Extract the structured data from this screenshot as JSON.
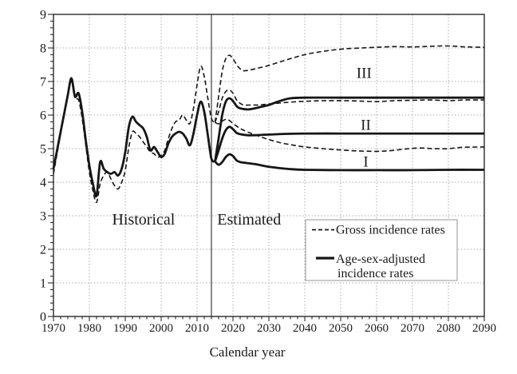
{
  "chart_data": {
    "type": "line",
    "title": "",
    "xlabel": "Calendar year",
    "ylabel": "",
    "xlim": [
      1970,
      2090
    ],
    "ylim": [
      0,
      9
    ],
    "x_tick_step": 10,
    "x_minor_step": 2,
    "y_tick_step": 1,
    "y_minor_step": 0.2,
    "grid": true,
    "legend_position": "inside lower right",
    "divider_x": 2014,
    "x_tick_labels": [
      "1970",
      "1980",
      "1990",
      "2000",
      "2010",
      "2020",
      "2030",
      "2040",
      "2050",
      "2060",
      "2070",
      "2080",
      "2090"
    ],
    "y_tick_labels": [
      "0",
      "1",
      "2",
      "3",
      "4",
      "5",
      "6",
      "7",
      "8",
      "9"
    ],
    "region_labels": [
      {
        "text": "Historical",
        "x": 1995.1,
        "y": 2.9
      },
      {
        "text": "Estimated",
        "x": 2024.5,
        "y": 2.9
      }
    ],
    "scenario_labels": [
      {
        "text": "III",
        "x": 2056.5,
        "y": 7.26
      },
      {
        "text": "II",
        "x": 2057.0,
        "y": 5.71
      },
      {
        "text": "I",
        "x": 2057.0,
        "y": 4.62
      }
    ],
    "legend": {
      "entries": [
        {
          "label": "Gross incidence rates",
          "style": "dashed"
        },
        {
          "label": "Age-sex-adjusted\nincidence rates",
          "style": "solid"
        }
      ]
    },
    "series": [
      {
        "name": "gross-historical",
        "group": "Gross incidence rates",
        "scenario": "historical",
        "style": "dashed",
        "points": [
          [
            1970,
            4.25
          ],
          [
            1971,
            4.85
          ],
          [
            1972,
            5.45
          ],
          [
            1973,
            6.05
          ],
          [
            1974,
            6.65
          ],
          [
            1975,
            7.0
          ],
          [
            1976,
            6.5
          ],
          [
            1977,
            6.45
          ],
          [
            1978,
            5.9
          ],
          [
            1979,
            5.1
          ],
          [
            1980,
            4.3
          ],
          [
            1981,
            3.75
          ],
          [
            1982,
            3.4
          ],
          [
            1983,
            3.95
          ],
          [
            1984,
            4.2
          ],
          [
            1985,
            4.3
          ],
          [
            1986,
            4.1
          ],
          [
            1987,
            3.9
          ],
          [
            1988,
            3.8
          ],
          [
            1989,
            4.0
          ],
          [
            1990,
            4.35
          ],
          [
            1991,
            5.05
          ],
          [
            1992,
            5.5
          ],
          [
            1993,
            5.45
          ],
          [
            1994,
            5.35
          ],
          [
            1995,
            5.2
          ],
          [
            1996,
            5.05
          ],
          [
            1997,
            4.9
          ],
          [
            1998,
            4.85
          ],
          [
            1999,
            4.75
          ],
          [
            2000,
            4.8
          ],
          [
            2001,
            4.95
          ],
          [
            2002,
            5.3
          ],
          [
            2003,
            5.6
          ],
          [
            2004,
            5.8
          ],
          [
            2005,
            5.85
          ],
          [
            2006,
            6.0
          ],
          [
            2007,
            5.85
          ],
          [
            2008,
            5.75
          ],
          [
            2009,
            6.2
          ],
          [
            2010,
            6.9
          ],
          [
            2011,
            7.45
          ],
          [
            2012,
            7.15
          ],
          [
            2013,
            6.5
          ],
          [
            2014,
            5.9
          ],
          [
            2015,
            5.78
          ]
        ]
      },
      {
        "name": "adjusted-historical",
        "group": "Age-sex-adjusted incidence rates",
        "scenario": "historical",
        "style": "solid",
        "points": [
          [
            1970,
            4.4
          ],
          [
            1971,
            4.95
          ],
          [
            1972,
            5.5
          ],
          [
            1973,
            6.05
          ],
          [
            1974,
            6.6
          ],
          [
            1975,
            7.1
          ],
          [
            1976,
            6.55
          ],
          [
            1977,
            6.65
          ],
          [
            1978,
            6.1
          ],
          [
            1979,
            5.25
          ],
          [
            1980,
            4.5
          ],
          [
            1981,
            3.95
          ],
          [
            1982,
            3.6
          ],
          [
            1983,
            4.6
          ],
          [
            1984,
            4.4
          ],
          [
            1985,
            4.3
          ],
          [
            1986,
            4.25
          ],
          [
            1987,
            4.3
          ],
          [
            1988,
            4.2
          ],
          [
            1989,
            4.4
          ],
          [
            1990,
            4.9
          ],
          [
            1991,
            5.65
          ],
          [
            1992,
            5.95
          ],
          [
            1993,
            5.8
          ],
          [
            1994,
            5.7
          ],
          [
            1995,
            5.6
          ],
          [
            1996,
            5.35
          ],
          [
            1997,
            4.95
          ],
          [
            1998,
            5.05
          ],
          [
            1999,
            4.9
          ],
          [
            2000,
            4.75
          ],
          [
            2001,
            4.85
          ],
          [
            2002,
            5.15
          ],
          [
            2003,
            5.35
          ],
          [
            2004,
            5.45
          ],
          [
            2005,
            5.5
          ],
          [
            2006,
            5.45
          ],
          [
            2007,
            5.3
          ],
          [
            2008,
            5.1
          ],
          [
            2009,
            5.45
          ],
          [
            2010,
            6.0
          ],
          [
            2011,
            6.4
          ],
          [
            2012,
            6.1
          ],
          [
            2013,
            5.4
          ],
          [
            2014,
            4.7
          ],
          [
            2015,
            4.62
          ]
        ]
      },
      {
        "name": "gross-III",
        "group": "Gross incidence rates",
        "scenario": "III",
        "style": "dashed",
        "points": [
          [
            2015,
            5.78
          ],
          [
            2016,
            6.55
          ],
          [
            2017,
            7.3
          ],
          [
            2018,
            7.68
          ],
          [
            2019,
            7.78
          ],
          [
            2020,
            7.68
          ],
          [
            2021,
            7.5
          ],
          [
            2022,
            7.38
          ],
          [
            2023,
            7.32
          ],
          [
            2025,
            7.35
          ],
          [
            2027,
            7.4
          ],
          [
            2030,
            7.48
          ],
          [
            2033,
            7.58
          ],
          [
            2036,
            7.68
          ],
          [
            2040,
            7.8
          ],
          [
            2044,
            7.88
          ],
          [
            2048,
            7.94
          ],
          [
            2052,
            7.98
          ],
          [
            2056,
            8.0
          ],
          [
            2060,
            8.02
          ],
          [
            2065,
            8.04
          ],
          [
            2070,
            8.03
          ],
          [
            2075,
            8.05
          ],
          [
            2080,
            8.06
          ],
          [
            2085,
            8.03
          ],
          [
            2090,
            8.02
          ]
        ]
      },
      {
        "name": "gross-II",
        "group": "Gross incidence rates",
        "scenario": "II",
        "style": "dashed",
        "points": [
          [
            2015,
            5.78
          ],
          [
            2016,
            6.1
          ],
          [
            2017,
            6.5
          ],
          [
            2018,
            6.7
          ],
          [
            2019,
            6.75
          ],
          [
            2020,
            6.65
          ],
          [
            2021,
            6.45
          ],
          [
            2022,
            6.35
          ],
          [
            2023,
            6.3
          ],
          [
            2025,
            6.3
          ],
          [
            2027,
            6.3
          ],
          [
            2030,
            6.33
          ],
          [
            2034,
            6.37
          ],
          [
            2038,
            6.4
          ],
          [
            2042,
            6.42
          ],
          [
            2046,
            6.43
          ],
          [
            2050,
            6.43
          ],
          [
            2055,
            6.42
          ],
          [
            2060,
            6.4
          ],
          [
            2065,
            6.43
          ],
          [
            2070,
            6.44
          ],
          [
            2075,
            6.45
          ],
          [
            2080,
            6.43
          ],
          [
            2085,
            6.45
          ],
          [
            2090,
            6.45
          ]
        ]
      },
      {
        "name": "gross-I",
        "group": "Gross incidence rates",
        "scenario": "I",
        "style": "dashed",
        "points": [
          [
            2015,
            5.78
          ],
          [
            2016,
            5.74
          ],
          [
            2017,
            5.82
          ],
          [
            2018,
            5.87
          ],
          [
            2019,
            5.84
          ],
          [
            2020,
            5.75
          ],
          [
            2022,
            5.6
          ],
          [
            2024,
            5.5
          ],
          [
            2026,
            5.42
          ],
          [
            2028,
            5.34
          ],
          [
            2030,
            5.27
          ],
          [
            2033,
            5.18
          ],
          [
            2036,
            5.12
          ],
          [
            2040,
            5.05
          ],
          [
            2045,
            5.0
          ],
          [
            2050,
            4.96
          ],
          [
            2055,
            4.93
          ],
          [
            2060,
            4.92
          ],
          [
            2064,
            4.94
          ],
          [
            2068,
            4.99
          ],
          [
            2072,
            5.02
          ],
          [
            2076,
            5.0
          ],
          [
            2080,
            5.0
          ],
          [
            2084,
            5.04
          ],
          [
            2090,
            5.05
          ]
        ]
      },
      {
        "name": "adjusted-III",
        "group": "Age-sex-adjusted incidence rates",
        "scenario": "III",
        "style": "solid",
        "points": [
          [
            2015,
            4.62
          ],
          [
            2016,
            5.3
          ],
          [
            2017,
            6.0
          ],
          [
            2018,
            6.4
          ],
          [
            2019,
            6.5
          ],
          [
            2020,
            6.42
          ],
          [
            2021,
            6.27
          ],
          [
            2022,
            6.2
          ],
          [
            2024,
            6.17
          ],
          [
            2026,
            6.2
          ],
          [
            2028,
            6.25
          ],
          [
            2030,
            6.3
          ],
          [
            2032,
            6.38
          ],
          [
            2034,
            6.45
          ],
          [
            2036,
            6.5
          ],
          [
            2040,
            6.52
          ],
          [
            2050,
            6.52
          ],
          [
            2060,
            6.52
          ],
          [
            2070,
            6.52
          ],
          [
            2080,
            6.52
          ],
          [
            2090,
            6.52
          ]
        ]
      },
      {
        "name": "adjusted-II",
        "group": "Age-sex-adjusted incidence rates",
        "scenario": "II",
        "style": "solid",
        "points": [
          [
            2015,
            4.62
          ],
          [
            2016,
            4.95
          ],
          [
            2017,
            5.3
          ],
          [
            2018,
            5.55
          ],
          [
            2019,
            5.65
          ],
          [
            2020,
            5.58
          ],
          [
            2021,
            5.47
          ],
          [
            2022,
            5.43
          ],
          [
            2024,
            5.4
          ],
          [
            2026,
            5.4
          ],
          [
            2030,
            5.42
          ],
          [
            2035,
            5.44
          ],
          [
            2040,
            5.45
          ],
          [
            2050,
            5.45
          ],
          [
            2060,
            5.45
          ],
          [
            2070,
            5.45
          ],
          [
            2080,
            5.45
          ],
          [
            2090,
            5.45
          ]
        ]
      },
      {
        "name": "adjusted-I",
        "group": "Age-sex-adjusted incidence rates",
        "scenario": "I",
        "style": "solid",
        "points": [
          [
            2015,
            4.62
          ],
          [
            2016,
            4.52
          ],
          [
            2017,
            4.6
          ],
          [
            2018,
            4.75
          ],
          [
            2019,
            4.83
          ],
          [
            2020,
            4.78
          ],
          [
            2021,
            4.65
          ],
          [
            2022,
            4.6
          ],
          [
            2024,
            4.57
          ],
          [
            2026,
            4.54
          ],
          [
            2028,
            4.5
          ],
          [
            2030,
            4.46
          ],
          [
            2033,
            4.42
          ],
          [
            2036,
            4.39
          ],
          [
            2040,
            4.37
          ],
          [
            2050,
            4.36
          ],
          [
            2060,
            4.36
          ],
          [
            2070,
            4.36
          ],
          [
            2080,
            4.37
          ],
          [
            2090,
            4.37
          ]
        ]
      }
    ]
  },
  "colors": {
    "background": "#ffffff",
    "line": "#161616",
    "grid": "#ababab",
    "divider": "#3d3d3d",
    "frame": "#1a1a1a",
    "legend_border": "#969696"
  }
}
